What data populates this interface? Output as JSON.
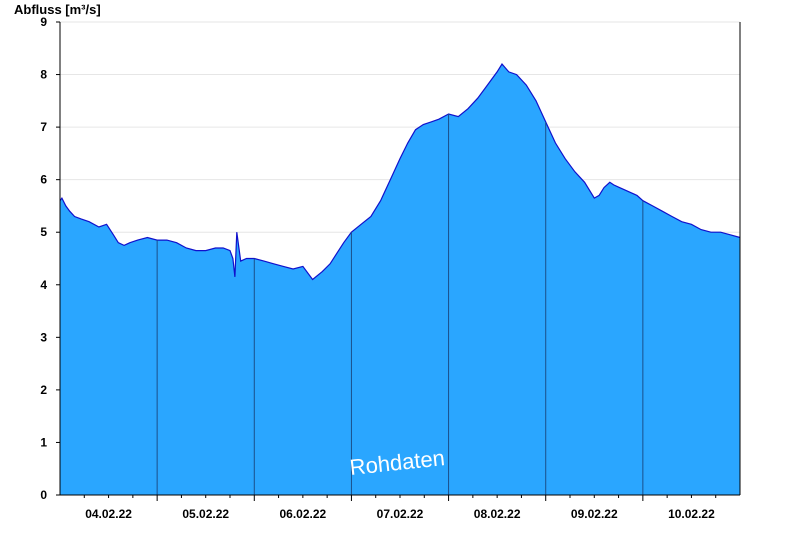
{
  "chart_data": {
    "type": "area",
    "ylabel": "Abfluss [m³/s]",
    "xlabel": "",
    "title": "",
    "ylim": [
      0,
      9
    ],
    "yticks": [
      "0",
      "1",
      "2",
      "3",
      "4",
      "5",
      "6",
      "7",
      "8",
      "9"
    ],
    "x_day_range": [
      0,
      7
    ],
    "x_tick_labels": [
      "04.02.22",
      "05.02.22",
      "06.02.22",
      "07.02.22",
      "08.02.22",
      "09.02.22",
      "10.02.22"
    ],
    "x_tick_positions": [
      0.5,
      1.5,
      2.5,
      3.5,
      4.5,
      5.5,
      6.5
    ],
    "day_separators": [
      1,
      2,
      3,
      4,
      5,
      6
    ],
    "grid": "horizontal",
    "watermark": "Rohdaten",
    "fill_color": "#2aa6ff",
    "line_color": "#1010cc",
    "series": [
      {
        "x": [
          0,
          0.02,
          0.06,
          0.1,
          0.15,
          0.22,
          0.3,
          0.4,
          0.48,
          0.55,
          0.6,
          0.66,
          0.72,
          0.8,
          0.9,
          1.0,
          1.1,
          1.2,
          1.3,
          1.4,
          1.5,
          1.6,
          1.68,
          1.75,
          1.78,
          1.8,
          1.82,
          1.86,
          1.92,
          2.0,
          2.1,
          2.2,
          2.3,
          2.4,
          2.5,
          2.6,
          2.7,
          2.78,
          2.85,
          2.92,
          3.0,
          3.1,
          3.2,
          3.3,
          3.4,
          3.5,
          3.58,
          3.66,
          3.74,
          3.82,
          3.9,
          4.0,
          4.1,
          4.2,
          4.3,
          4.4,
          4.5,
          4.55,
          4.62,
          4.7,
          4.8,
          4.9,
          5.0,
          5.1,
          5.2,
          5.3,
          5.4,
          5.5,
          5.55,
          5.6,
          5.66,
          5.7,
          5.76,
          5.82,
          5.88,
          5.94,
          6.0,
          6.1,
          6.2,
          6.3,
          6.4,
          6.5,
          6.6,
          6.7,
          6.8,
          6.9,
          7.0
        ],
        "values": [
          5.6,
          5.65,
          5.5,
          5.4,
          5.3,
          5.25,
          5.2,
          5.1,
          5.15,
          4.95,
          4.8,
          4.75,
          4.8,
          4.85,
          4.9,
          4.85,
          4.85,
          4.8,
          4.7,
          4.65,
          4.65,
          4.7,
          4.7,
          4.65,
          4.5,
          4.15,
          5.0,
          4.45,
          4.5,
          4.5,
          4.45,
          4.4,
          4.35,
          4.3,
          4.35,
          4.1,
          4.25,
          4.4,
          4.6,
          4.8,
          5.0,
          5.15,
          5.3,
          5.6,
          6.0,
          6.4,
          6.7,
          6.95,
          7.05,
          7.1,
          7.15,
          7.25,
          7.2,
          7.35,
          7.55,
          7.8,
          8.05,
          8.2,
          8.05,
          8.0,
          7.8,
          7.5,
          7.1,
          6.7,
          6.4,
          6.15,
          5.95,
          5.65,
          5.7,
          5.85,
          5.95,
          5.9,
          5.85,
          5.8,
          5.75,
          5.7,
          5.6,
          5.5,
          5.4,
          5.3,
          5.2,
          5.15,
          5.05,
          5.0,
          5.0,
          4.95,
          4.9
        ]
      }
    ]
  }
}
